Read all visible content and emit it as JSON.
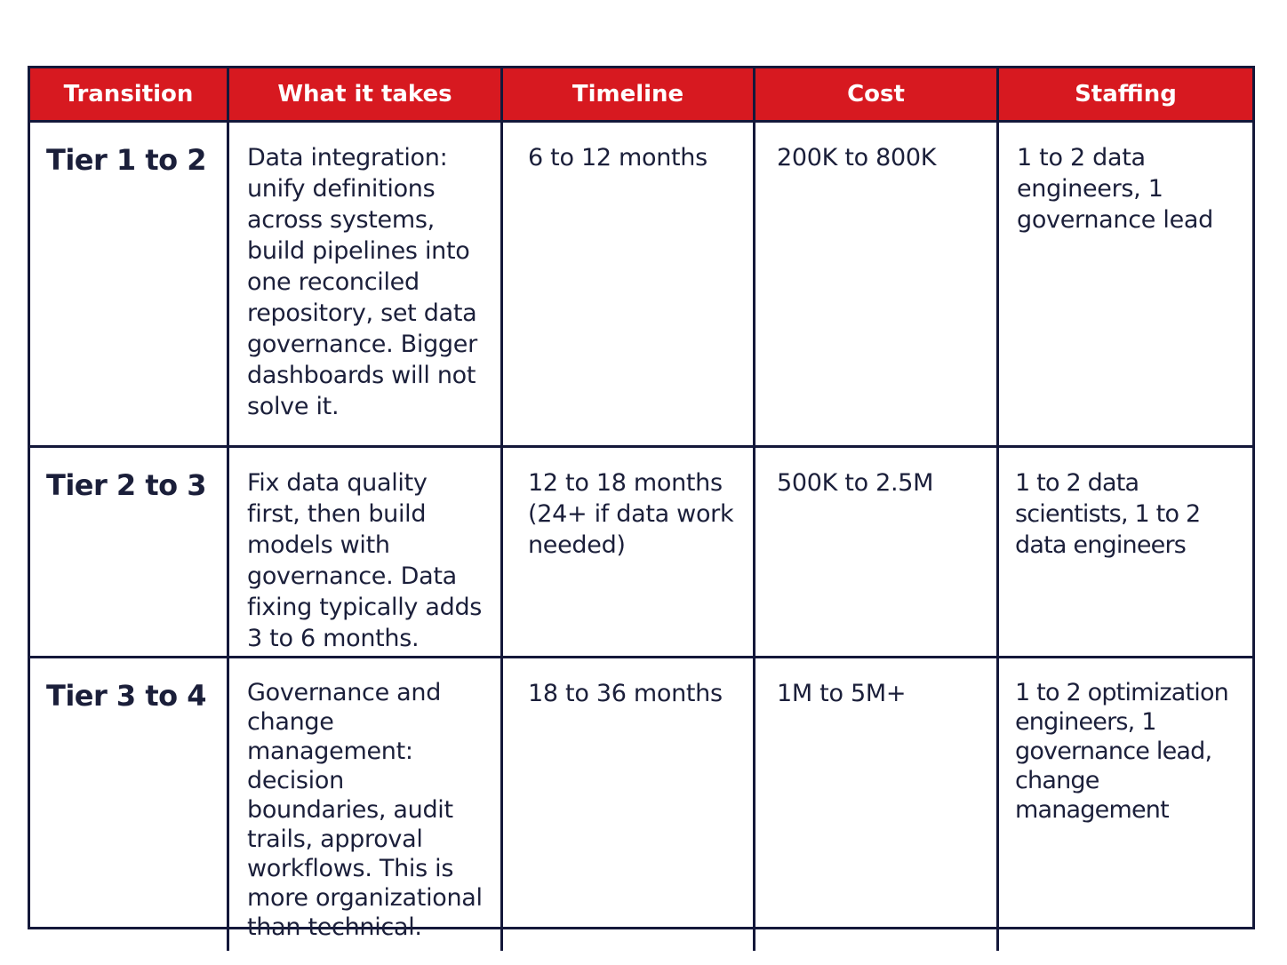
{
  "headers": [
    "Transition",
    "What it takes",
    "Timeline",
    "Cost",
    "Staffing"
  ],
  "rows": [
    {
      "transition": "Tier 1 to 2",
      "what_it_takes": "Data integration: unify definitions across systems, build pipelines into one reconciled repository, set data governance. Bigger dashboards will not solve it.",
      "timeline": "6 to 12 months",
      "cost": "200K to 800K",
      "staffing": "1 to 2 data engineers, 1 governance lead"
    },
    {
      "transition": "Tier 2 to 3",
      "what_it_takes": "Fix data quality first, then build models with governance. Data fixing typically adds 3 to 6 months.",
      "timeline": "12 to 18 months (24+ if data work needed)",
      "cost": "500K to 2.5M",
      "staffing": "1 to 2 data scientists, 1 to 2 data engineers"
    },
    {
      "transition": "Tier 3 to 4",
      "what_it_takes": "Governance and change management: decision boundaries, audit trails, approval workflows. This is more organizational than technical.",
      "timeline": "18 to 36 months",
      "cost": "1M to 5M+",
      "staffing": "1 to 2 optimization engineers, 1 governance lead, change management"
    }
  ],
  "colors": {
    "header_bg": "#d71920",
    "border": "#14183a",
    "text": "#1b1f3a"
  }
}
